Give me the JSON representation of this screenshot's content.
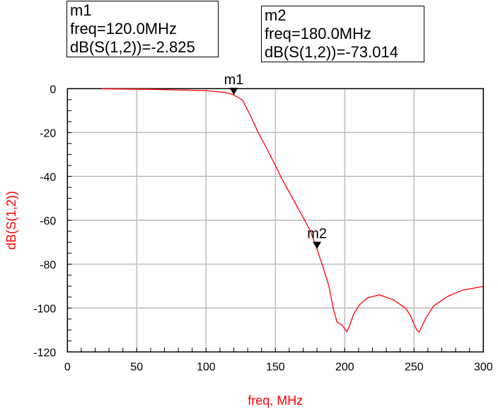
{
  "chart_data": {
    "type": "line",
    "title": "",
    "xlabel": "freq, MHz",
    "ylabel": "dB(S(1,2))",
    "xlim": [
      0,
      300
    ],
    "ylim": [
      -120,
      0
    ],
    "xticks": [
      0,
      50,
      100,
      150,
      200,
      250,
      300
    ],
    "yticks": [
      0,
      -20,
      -40,
      -60,
      -80,
      -100,
      -120
    ],
    "grid": true,
    "series": [
      {
        "name": "dB(S(1,2))",
        "color": "#ff0000",
        "x": [
          25,
          60,
          100,
          112,
          117,
          119.7,
          122,
          126.4,
          131,
          137.6,
          144,
          150,
          155,
          160.5,
          169,
          175,
          180,
          184.3,
          188.5,
          191.9,
          194.5,
          197.9,
          200,
          201.7,
          203.5,
          206.4,
          210.7,
          216.6,
          225.1,
          235.3,
          243.8,
          247.5,
          249.8,
          252,
          253.7,
          255.5,
          258.3,
          264.3,
          274.5,
          284.7,
          300
        ],
        "y": [
          -0.1,
          -0.3,
          -0.9,
          -1.6,
          -2.2,
          -2.8,
          -3.6,
          -5.3,
          -11,
          -20,
          -27.5,
          -35,
          -41.5,
          -47.8,
          -57.5,
          -64.5,
          -73,
          -81.2,
          -89.8,
          -100.6,
          -106.5,
          -107.6,
          -109.5,
          -110.8,
          -108,
          -102.8,
          -98.5,
          -95.3,
          -94,
          -96.3,
          -100,
          -103.5,
          -107,
          -110,
          -111,
          -108.5,
          -104.8,
          -98.9,
          -94.6,
          -91.9,
          -90.1
        ]
      }
    ],
    "markers": [
      {
        "name": "m1",
        "freq": 120.0,
        "value": -2.825,
        "line1": "m1",
        "line2": "freq=120.0MHz",
        "line3": "dB(S(1,2))=-2.825"
      },
      {
        "name": "m2",
        "freq": 180.0,
        "value": -73.014,
        "line1": "m2",
        "line2": "freq=180.0MHz",
        "line3": "dB(S(1,2))=-73.014"
      }
    ]
  }
}
